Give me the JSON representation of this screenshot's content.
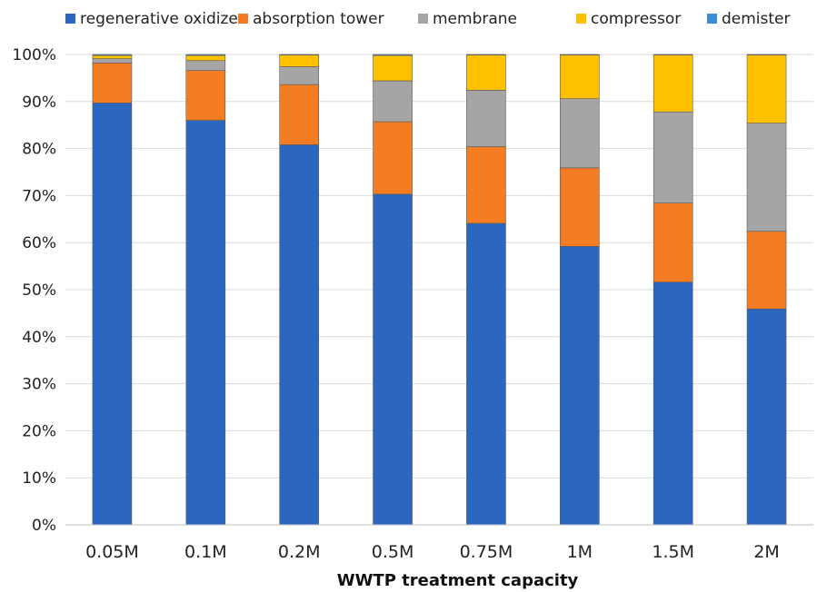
{
  "chart_data": {
    "type": "bar",
    "stacked": true,
    "categories": [
      "0.05M",
      "0.1M",
      "0.2M",
      "0.5M",
      "0.75M",
      "1M",
      "1.5M",
      "2M"
    ],
    "series": [
      {
        "name": "regenerative oxidizer",
        "color": "#2B67C0",
        "values": [
          89.7,
          86.0,
          80.8,
          70.3,
          64.1,
          59.2,
          51.6,
          45.9
        ]
      },
      {
        "name": "absorption tower",
        "color": "#F47D23",
        "values": [
          8.5,
          10.6,
          12.8,
          15.4,
          16.3,
          16.7,
          16.8,
          16.5
        ]
      },
      {
        "name": "membrane",
        "color": "#A5A5A5",
        "values": [
          0.9,
          2.1,
          3.8,
          8.7,
          12.0,
          14.7,
          19.4,
          23.0
        ]
      },
      {
        "name": "compressor",
        "color": "#FFC000",
        "values": [
          0.7,
          1.1,
          2.5,
          5.4,
          7.5,
          9.3,
          12.1,
          14.5
        ]
      },
      {
        "name": "demister",
        "color": "#3A8FD6",
        "values": [
          0.2,
          0.2,
          0.1,
          0.2,
          0.1,
          0.1,
          0.1,
          0.1
        ]
      }
    ],
    "title": "",
    "xlabel": "WWTP treatment capacity",
    "ylabel": "",
    "ylim": [
      0,
      100
    ],
    "yticks": [
      "0%",
      "10%",
      "20%",
      "30%",
      "40%",
      "50%",
      "60%",
      "70%",
      "80%",
      "90%",
      "100%"
    ],
    "ytick_values": [
      0,
      10,
      20,
      30,
      40,
      50,
      60,
      70,
      80,
      90,
      100
    ],
    "grid": true,
    "legend_position": "top"
  }
}
